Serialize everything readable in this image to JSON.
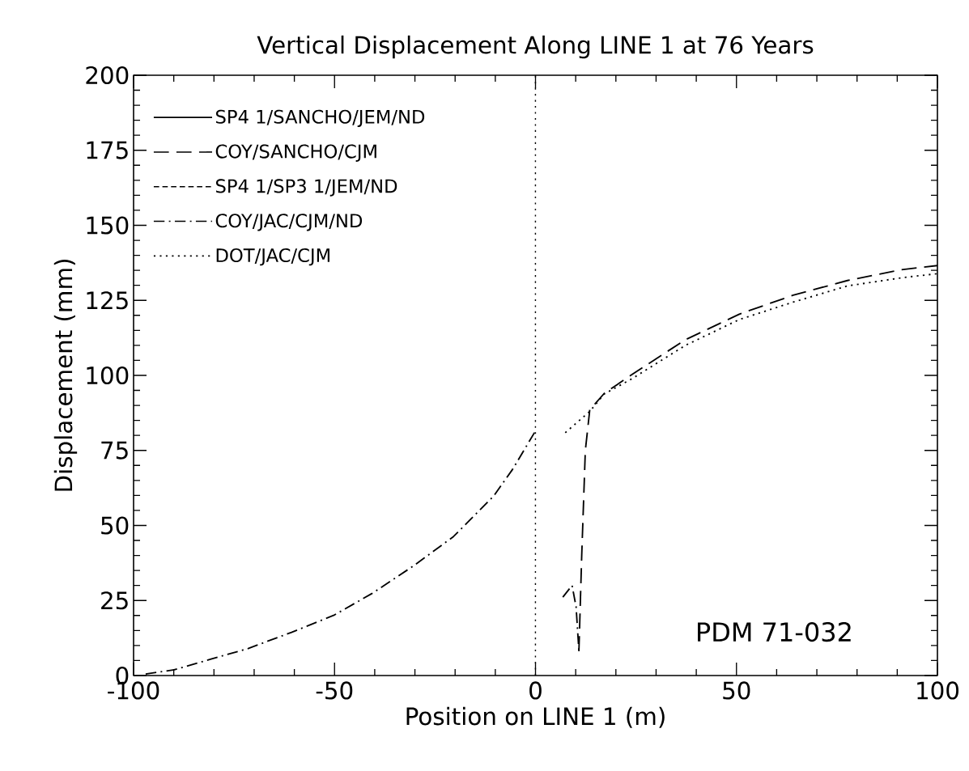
{
  "chart_data": {
    "type": "line",
    "title": "Vertical Displacement Along LINE 1 at 76 Years",
    "xlabel": "Position on LINE 1 (m)",
    "ylabel": "Displacement (mm)",
    "xlim": [
      -100,
      100
    ],
    "xticks": [
      -100,
      -50,
      0,
      50,
      100
    ],
    "ylim": [
      0,
      200
    ],
    "yticks": [
      0,
      25,
      50,
      75,
      100,
      125,
      150,
      175,
      200
    ],
    "legend": "top left",
    "grid": false,
    "marker": "none",
    "ref_lines": [
      {
        "axis": "x",
        "value": 0,
        "line_style": "dotted"
      }
    ],
    "annotations": [
      "PDM 71-032"
    ],
    "series": [
      {
        "name": "SP4 1/SANCHO/JEM/ND",
        "color": "#000000",
        "line_style": "solid"
      },
      {
        "name": "COY/SANCHO/CJM",
        "color": "#000000",
        "line_style": "dashed",
        "x": [
          10.8,
          11.5,
          12.4,
          13.5,
          17.1,
          23.9,
          37.3,
          50.7,
          64.1,
          77.6,
          91,
          100
        ],
        "values": [
          8.1,
          40,
          75,
          88.5,
          94,
          100.2,
          111.9,
          120.4,
          126.7,
          131.6,
          135.2,
          136.6
        ]
      },
      {
        "name": "SP4 1/SP3 1/JEM/ND",
        "color": "#000000",
        "line_style": "dashed_short"
      },
      {
        "name": "COY/JAC/CJM/ND",
        "color": "#000000",
        "line_style": "dashdot",
        "x": [
          -97,
          -89.9,
          -80.9,
          -71.5,
          -60.7,
          -50,
          -40.6,
          -30.5,
          -20.4,
          -10.4,
          -5.7,
          0,
          null,
          6.8,
          9.1,
          10.1,
          10.8
        ],
        "values": [
          0.5,
          1.9,
          5.4,
          9,
          14.4,
          20.2,
          27.4,
          36.4,
          46.3,
          59.8,
          68.7,
          81.5,
          null,
          26.1,
          30,
          22.9,
          8.1
        ]
      },
      {
        "name": "DOT/JAC/CJM",
        "color": "#000000",
        "line_style": "dotted",
        "x": [
          7.4,
          13.5,
          17.1,
          23.9,
          37.3,
          50.7,
          64.1,
          77.6,
          91,
          100
        ],
        "values": [
          80.9,
          88,
          93.8,
          98.8,
          110,
          118.6,
          124.4,
          129.8,
          132.5,
          133.9
        ]
      }
    ]
  }
}
